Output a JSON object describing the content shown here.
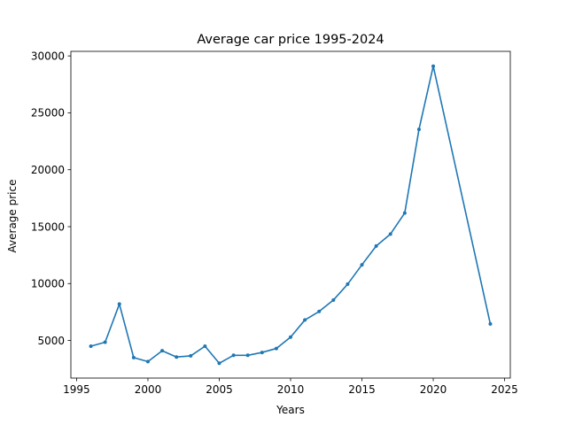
{
  "chart_data": {
    "type": "line",
    "title": "Average car price 1995-2024",
    "xlabel": "Years",
    "ylabel": "Average price",
    "xlim": [
      1994.6,
      2025.4
    ],
    "ylim": [
      1700,
      30400
    ],
    "xticks": [
      1995,
      2000,
      2005,
      2010,
      2015,
      2020,
      2025
    ],
    "yticks": [
      5000,
      10000,
      15000,
      20000,
      25000,
      30000
    ],
    "grid": false,
    "legend": "none",
    "series": [
      {
        "color": "#1f77b4",
        "x": [
          1996,
          1997,
          1998,
          1999,
          2000,
          2001,
          2002,
          2003,
          2004,
          2005,
          2006,
          2007,
          2008,
          2009,
          2010,
          2011,
          2012,
          2013,
          2014,
          2015,
          2016,
          2017,
          2018,
          2019,
          2020,
          2024
        ],
        "y": [
          4500,
          4850,
          8200,
          3500,
          3150,
          4100,
          3550,
          3650,
          4500,
          3000,
          3700,
          3700,
          3950,
          4300,
          5300,
          6800,
          7550,
          8550,
          9950,
          11650,
          13300,
          14350,
          16200,
          23550,
          29100,
          6450
        ]
      }
    ]
  }
}
